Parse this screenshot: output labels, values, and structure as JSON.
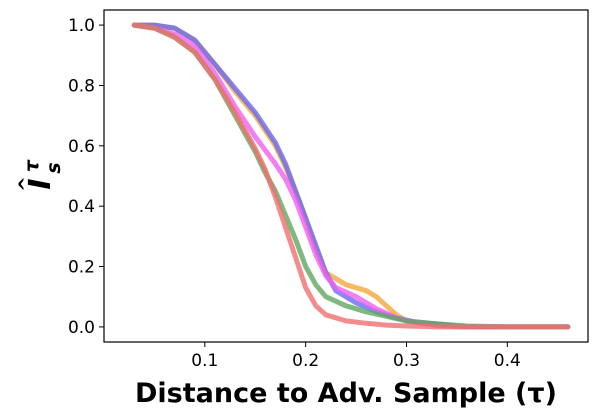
{
  "chart_data": {
    "type": "line",
    "title": "",
    "xlabel": "Distance to Adv. Sample (τ)",
    "ylabel": "I",
    "ylabel_hat": "^",
    "ylabel_subscript": "s",
    "ylabel_superscript": "τ",
    "xlim": [
      0.0,
      0.48
    ],
    "ylim": [
      -0.05,
      1.05
    ],
    "xticks": [
      0.1,
      0.2,
      0.3,
      0.4
    ],
    "xtick_labels": [
      "0.1",
      "0.2",
      "0.3",
      "0.4"
    ],
    "yticks": [
      0.0,
      0.2,
      0.4,
      0.6,
      0.8,
      1.0
    ],
    "ytick_labels": [
      "0.0",
      "0.2",
      "0.4",
      "0.6",
      "0.8",
      "1.0"
    ],
    "grid": false,
    "legend": "none",
    "series": [
      {
        "color": "#f4a63a",
        "points": [
          [
            0.03,
            1.0
          ],
          [
            0.05,
            1.0
          ],
          [
            0.07,
            0.99
          ],
          [
            0.09,
            0.95
          ],
          [
            0.11,
            0.87
          ],
          [
            0.13,
            0.78
          ],
          [
            0.15,
            0.7
          ],
          [
            0.17,
            0.6
          ],
          [
            0.18,
            0.53
          ],
          [
            0.19,
            0.45
          ],
          [
            0.2,
            0.36
          ],
          [
            0.21,
            0.26
          ],
          [
            0.22,
            0.18
          ],
          [
            0.24,
            0.14
          ],
          [
            0.26,
            0.12
          ],
          [
            0.27,
            0.1
          ],
          [
            0.28,
            0.07
          ],
          [
            0.29,
            0.04
          ],
          [
            0.3,
            0.02
          ],
          [
            0.32,
            0.01
          ],
          [
            0.35,
            0.0
          ],
          [
            0.4,
            0.0
          ],
          [
            0.46,
            0.0
          ]
        ]
      },
      {
        "color": "#6a6af2",
        "points": [
          [
            0.03,
            1.0
          ],
          [
            0.05,
            1.0
          ],
          [
            0.07,
            0.99
          ],
          [
            0.09,
            0.95
          ],
          [
            0.11,
            0.87
          ],
          [
            0.13,
            0.79
          ],
          [
            0.15,
            0.71
          ],
          [
            0.17,
            0.61
          ],
          [
            0.18,
            0.54
          ],
          [
            0.19,
            0.45
          ],
          [
            0.2,
            0.36
          ],
          [
            0.21,
            0.27
          ],
          [
            0.22,
            0.18
          ],
          [
            0.23,
            0.12
          ],
          [
            0.25,
            0.08
          ],
          [
            0.27,
            0.05
          ],
          [
            0.29,
            0.03
          ],
          [
            0.31,
            0.015
          ],
          [
            0.33,
            0.01
          ],
          [
            0.36,
            0.0
          ],
          [
            0.4,
            0.0
          ],
          [
            0.46,
            0.0
          ]
        ]
      },
      {
        "color": "#f060f0",
        "points": [
          [
            0.03,
            1.0
          ],
          [
            0.05,
            0.99
          ],
          [
            0.07,
            0.97
          ],
          [
            0.09,
            0.93
          ],
          [
            0.11,
            0.84
          ],
          [
            0.13,
            0.73
          ],
          [
            0.15,
            0.63
          ],
          [
            0.17,
            0.54
          ],
          [
            0.18,
            0.49
          ],
          [
            0.19,
            0.42
          ],
          [
            0.2,
            0.33
          ],
          [
            0.21,
            0.24
          ],
          [
            0.22,
            0.17
          ],
          [
            0.23,
            0.13
          ],
          [
            0.25,
            0.1
          ],
          [
            0.27,
            0.06
          ],
          [
            0.29,
            0.03
          ],
          [
            0.31,
            0.015
          ],
          [
            0.33,
            0.005
          ],
          [
            0.36,
            0.0
          ],
          [
            0.4,
            0.0
          ],
          [
            0.46,
            0.0
          ]
        ]
      },
      {
        "color": "#5fa85f",
        "points": [
          [
            0.03,
            1.0
          ],
          [
            0.05,
            0.99
          ],
          [
            0.07,
            0.96
          ],
          [
            0.09,
            0.91
          ],
          [
            0.11,
            0.82
          ],
          [
            0.13,
            0.7
          ],
          [
            0.15,
            0.58
          ],
          [
            0.16,
            0.51
          ],
          [
            0.17,
            0.45
          ],
          [
            0.18,
            0.37
          ],
          [
            0.19,
            0.29
          ],
          [
            0.2,
            0.2
          ],
          [
            0.21,
            0.14
          ],
          [
            0.22,
            0.1
          ],
          [
            0.24,
            0.07
          ],
          [
            0.26,
            0.05
          ],
          [
            0.28,
            0.035
          ],
          [
            0.3,
            0.02
          ],
          [
            0.33,
            0.01
          ],
          [
            0.36,
            0.003
          ],
          [
            0.4,
            0.0
          ],
          [
            0.46,
            0.0
          ]
        ]
      },
      {
        "color": "#f06f6f",
        "points": [
          [
            0.03,
            1.0
          ],
          [
            0.05,
            0.99
          ],
          [
            0.07,
            0.96
          ],
          [
            0.09,
            0.91
          ],
          [
            0.11,
            0.82
          ],
          [
            0.13,
            0.71
          ],
          [
            0.15,
            0.59
          ],
          [
            0.16,
            0.52
          ],
          [
            0.17,
            0.43
          ],
          [
            0.18,
            0.33
          ],
          [
            0.19,
            0.23
          ],
          [
            0.2,
            0.13
          ],
          [
            0.21,
            0.07
          ],
          [
            0.22,
            0.04
          ],
          [
            0.24,
            0.02
          ],
          [
            0.26,
            0.012
          ],
          [
            0.28,
            0.006
          ],
          [
            0.3,
            0.003
          ],
          [
            0.33,
            0.0
          ],
          [
            0.4,
            0.0
          ],
          [
            0.46,
            0.0
          ]
        ]
      }
    ]
  }
}
